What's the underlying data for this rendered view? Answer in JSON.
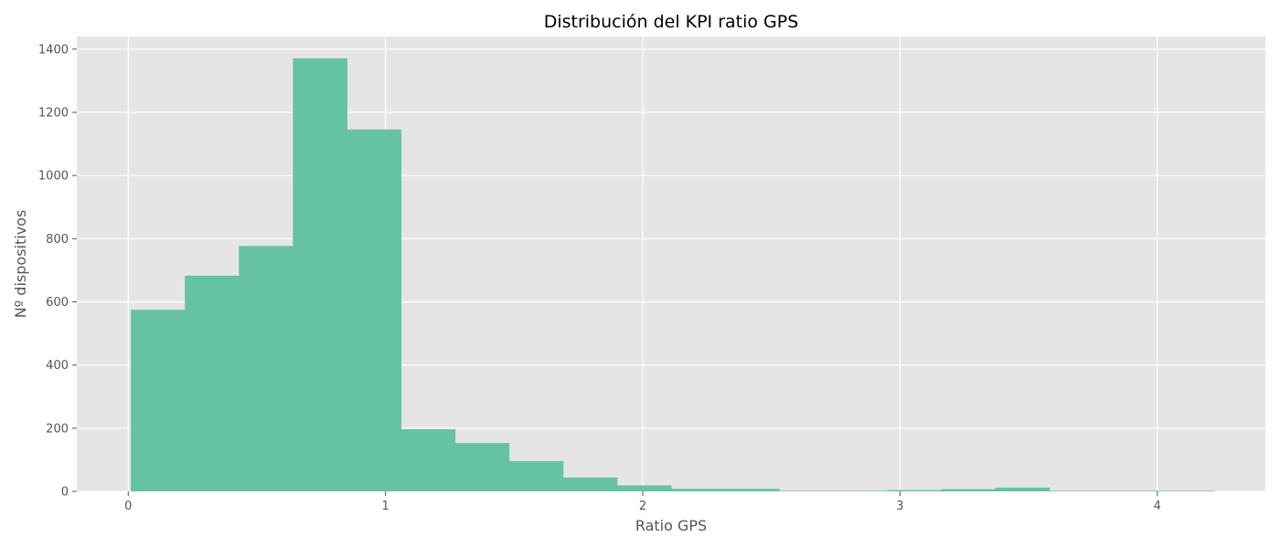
{
  "chart_data": {
    "type": "bar",
    "title": "Distribución del KPI ratio GPS",
    "xlabel": "Ratio GPS",
    "ylabel": "Nº dispositivos",
    "xlim": [
      -0.2,
      4.42
    ],
    "ylim": [
      0,
      1440
    ],
    "xticks": [
      0,
      1,
      2,
      3,
      4
    ],
    "yticks": [
      0,
      200,
      400,
      600,
      800,
      1000,
      1200,
      1400
    ],
    "grid": true,
    "bin_edges": [
      0.01,
      0.22,
      0.43,
      0.64,
      0.85,
      1.06,
      1.27,
      1.48,
      1.69,
      1.9,
      2.11,
      2.32,
      2.53,
      2.74,
      2.95,
      3.16,
      3.37,
      3.58,
      3.79,
      4.0,
      4.22
    ],
    "values": [
      575,
      683,
      777,
      1371,
      1146,
      197,
      153,
      96,
      44,
      19,
      8,
      8,
      2,
      2,
      4,
      7,
      12,
      2,
      2,
      2
    ],
    "colors": {
      "bar": "#66c2a5",
      "plot_background": "#e5e5e5",
      "grid": "#ffffff"
    }
  }
}
